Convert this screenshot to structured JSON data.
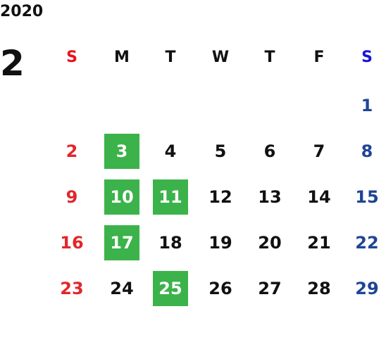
{
  "calendar": {
    "year": "2020",
    "month": "2",
    "weekdays": [
      "S",
      "M",
      "T",
      "W",
      "T",
      "F",
      "S"
    ],
    "first_weekday_index": 6,
    "days": [
      "1",
      "2",
      "3",
      "4",
      "5",
      "6",
      "7",
      "8",
      "9",
      "10",
      "11",
      "12",
      "13",
      "14",
      "15",
      "16",
      "17",
      "18",
      "19",
      "20",
      "21",
      "22",
      "23",
      "24",
      "25",
      "26",
      "27",
      "28",
      "29"
    ],
    "highlighted_days": [
      "3",
      "10",
      "11",
      "17",
      "25"
    ]
  },
  "colors": {
    "sunday_header": "#e8101b",
    "saturday_header": "#1515d8",
    "sunday_day": "#e3262b",
    "saturday_day": "#1f4596",
    "weekday": "#111111",
    "highlight_bg": "#3bb34a",
    "highlight_text": "#ffffff"
  }
}
